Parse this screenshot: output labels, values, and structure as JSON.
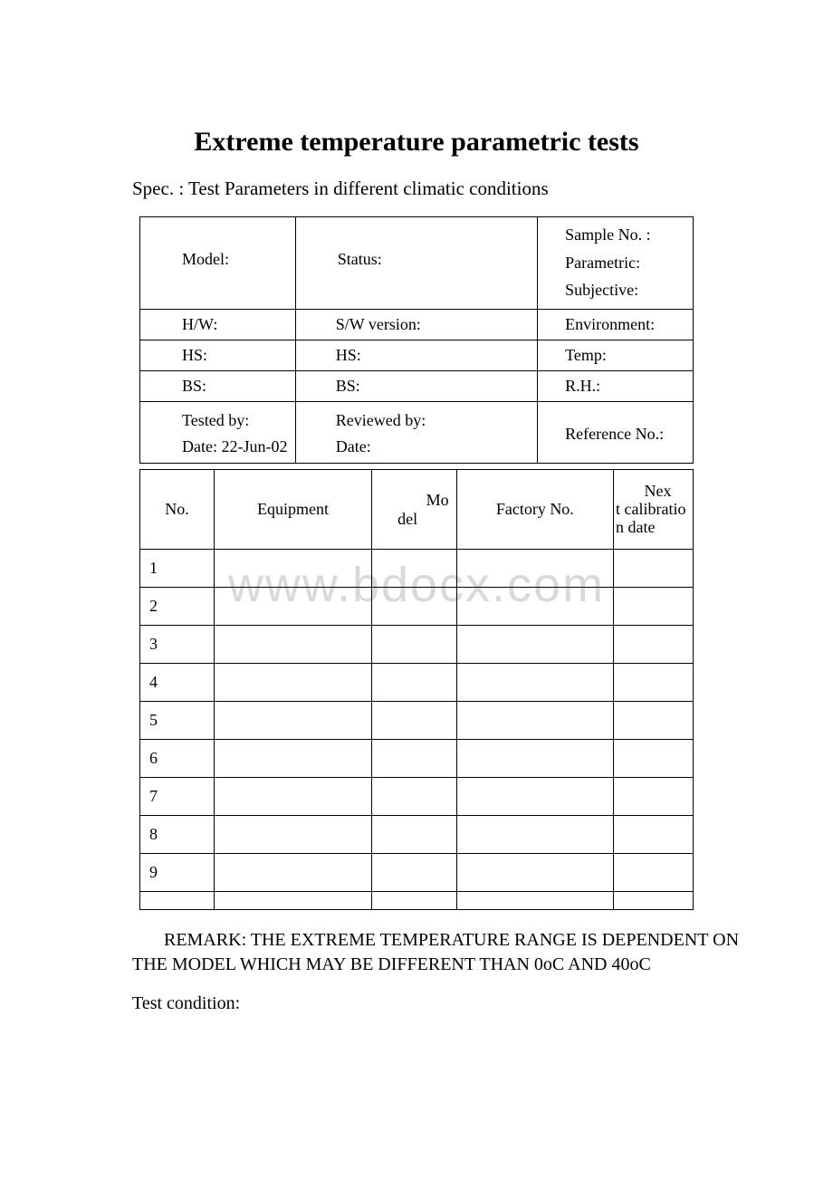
{
  "title": "Extreme temperature parametric tests",
  "spec": "Spec. : Test Parameters in different climatic conditions",
  "watermark": "www.bdocx.com",
  "meta": {
    "model": "Model:",
    "status": "Status:",
    "sample_no": "Sample No. :",
    "parametric": "Parametric:",
    "subjective": "Subjective:",
    "hw": "H/W:",
    "sw_version": "S/W version:",
    "environment": "Environment:",
    "hs1": "HS:",
    "hs2": "HS:",
    "temp": "Temp:",
    "bs1": "BS:",
    "bs2": "BS:",
    "rh": "R.H.:",
    "tested_by": "Tested by:",
    "date1_label": "Date: ",
    "date1_value": "22-Jun-02",
    "reviewed_by": "Reviewed by:",
    "date2": "Date:",
    "reference_no": "Reference No.:"
  },
  "equipment": {
    "headers": {
      "no": "No.",
      "equipment": "Equipment",
      "model": "Model",
      "factory_no": "Factory No.",
      "next_cal": "Next calibration date"
    },
    "rows": [
      "1",
      "2",
      "3",
      "4",
      "5",
      "6",
      "7",
      "8",
      "9"
    ]
  },
  "remark": "REMARK: THE EXTREME TEMPERATURE RANGE IS DEPENDENT ON THE MODEL WHICH MAY BE DIFFERENT THAN 0oC AND 40oC",
  "test_condition": "Test condition:"
}
